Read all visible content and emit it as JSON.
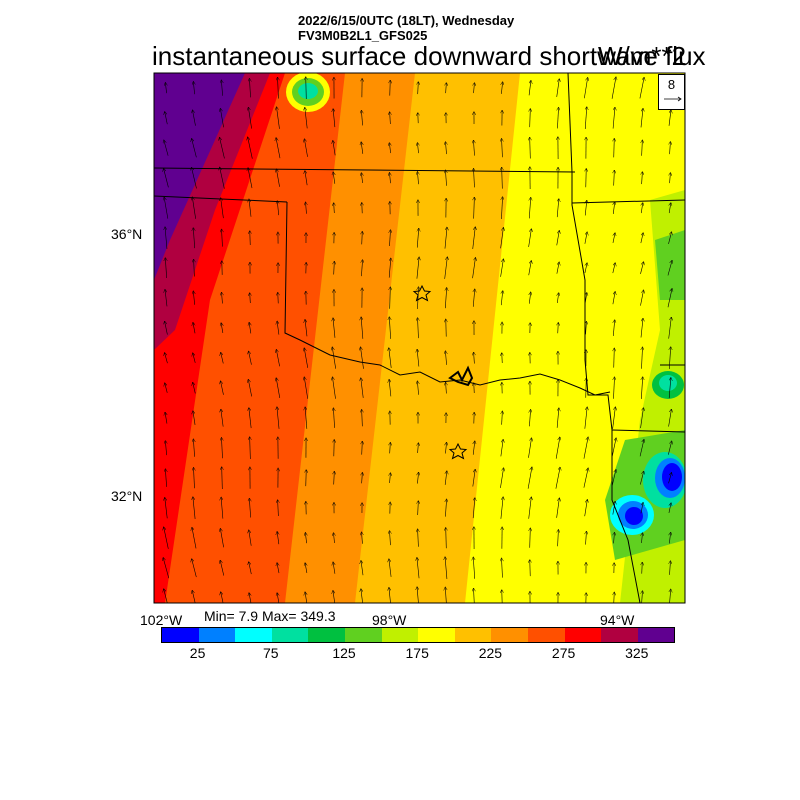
{
  "header": {
    "line1": "2022/6/15/0UTC (18LT), Wednesday",
    "line2": "FV3M0B2L1_GFS025",
    "title": "instantaneous surface downward shortwave flux",
    "units": "W/m**2"
  },
  "axes": {
    "lat_labels": [
      "36°N",
      "32°N"
    ],
    "lon_labels": [
      "102°W",
      "98°W",
      "94°W"
    ]
  },
  "vector_reference": {
    "value": "8"
  },
  "stats": {
    "text": "Min= 7.9 Max= 349.3",
    "min": 7.9,
    "max": 349.3
  },
  "colorbar": {
    "colors": [
      "#0000ff",
      "#0080ff",
      "#00ffff",
      "#00e0a0",
      "#00c040",
      "#60d020",
      "#c0f000",
      "#ffff00",
      "#ffc000",
      "#ff9000",
      "#ff5000",
      "#ff0000",
      "#b00040",
      "#600090"
    ],
    "tick_labels": [
      "25",
      "75",
      "125",
      "175",
      "225",
      "275",
      "325"
    ]
  },
  "markers": {
    "stations": 2
  },
  "colors": {
    "background": "#ffffff",
    "border": "#000000"
  }
}
